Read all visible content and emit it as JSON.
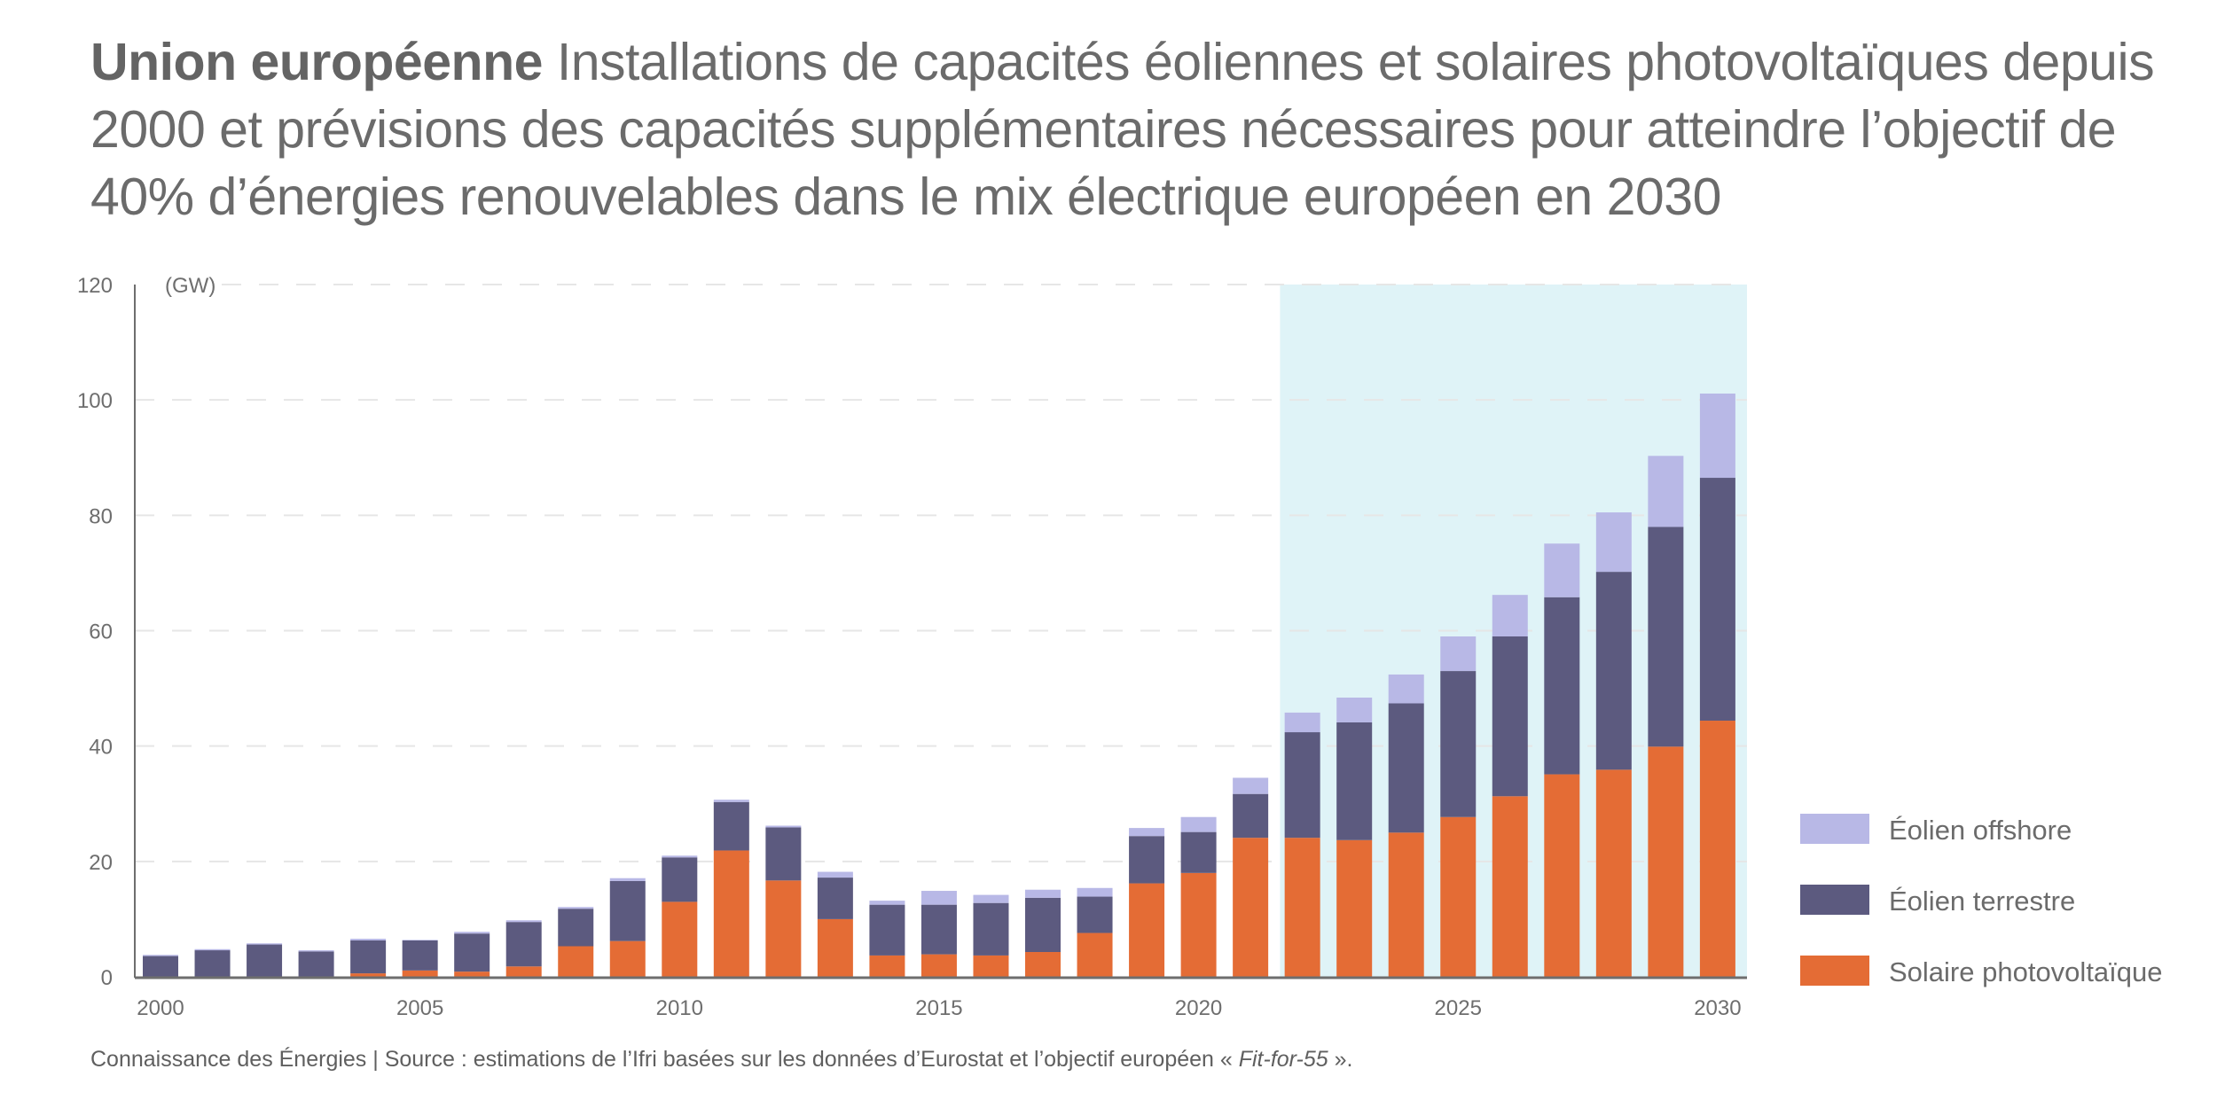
{
  "title": {
    "bold": "Union européenne",
    "rest": "Installations de capacités éoliennes et solaires photovoltaïques depuis 2000 et prévisions des capacités supplémentaires nécessaires pour atteindre l’objectif de 40% d’énergies renouvelables dans le mix électrique européen en 2030"
  },
  "footer": {
    "text": "Connaissance des Énergies | Source : estimations de l’Ifri basées sur les données d’Eurostat et l’objectif européen « ",
    "italic": "Fit-for-55",
    "end": " »."
  },
  "colors": {
    "solar": "#E46C35",
    "onshore": "#5C5A7F",
    "offshore": "#B8B8E6",
    "forecast_band": "#DFF3F7",
    "axis": "#6e6e6e",
    "grid": "#e6e6e6"
  },
  "chart_data": {
    "type": "bar",
    "stacked": true,
    "title": "Union européenne Installations de capacités éoliennes et solaires photovoltaïques depuis 2000 et prévisions des capacités supplémentaires nécessaires pour atteindre l’objectif de 40% d’énergies renouvelables dans le mix électrique européen en 2030",
    "xlabel": "",
    "ylabel": "(GW)",
    "ylim": [
      0,
      120
    ],
    "yticks": [
      0,
      20,
      40,
      60,
      80,
      100,
      120
    ],
    "xtick_labels": [
      "2000",
      "2005",
      "2010",
      "2015",
      "2020",
      "2025",
      "2030"
    ],
    "grid": "horizontal dashed",
    "legend_position": "right",
    "forecast_range": [
      2022,
      2030
    ],
    "categories": [
      2000,
      2001,
      2002,
      2003,
      2004,
      2005,
      2006,
      2007,
      2008,
      2009,
      2010,
      2011,
      2012,
      2013,
      2014,
      2015,
      2016,
      2017,
      2018,
      2019,
      2020,
      2021,
      2022,
      2023,
      2024,
      2025,
      2026,
      2027,
      2028,
      2029,
      2030
    ],
    "series": [
      {
        "name": "Solaire photovoltaïque",
        "color_key": "solar",
        "values": [
          0,
          0,
          0,
          0,
          0.6,
          1.1,
          0.9,
          1.8,
          5.3,
          6.2,
          13.0,
          21.9,
          16.7,
          10.0,
          3.7,
          3.9,
          3.7,
          4.3,
          7.6,
          16.2,
          18.0,
          24.1,
          24.1,
          23.7,
          25.0,
          27.7,
          31.3,
          35.1,
          35.9,
          39.9,
          44.4
        ]
      },
      {
        "name": "Éolien terrestre",
        "color_key": "onshore",
        "values": [
          3.6,
          4.6,
          5.6,
          4.4,
          5.7,
          5.2,
          6.6,
          7.7,
          6.5,
          10.4,
          7.7,
          8.4,
          9.2,
          7.2,
          8.8,
          8.6,
          9.1,
          9.4,
          6.3,
          8.2,
          7.1,
          7.6,
          18.3,
          20.4,
          22.4,
          25.3,
          27.7,
          30.7,
          34.3,
          38.1,
          42.1
        ]
      },
      {
        "name": "Éolien offshore",
        "color_key": "offshore",
        "values": [
          0.2,
          0.2,
          0.2,
          0.2,
          0.3,
          0.1,
          0.3,
          0.3,
          0.3,
          0.5,
          0.3,
          0.4,
          0.3,
          1.0,
          0.7,
          2.4,
          1.4,
          1.4,
          1.5,
          1.4,
          2.6,
          2.8,
          3.4,
          4.3,
          5.0,
          6.0,
          7.2,
          9.3,
          10.3,
          12.3,
          14.6
        ]
      }
    ],
    "legend": [
      "Éolien offshore",
      "Éolien terrestre",
      "Solaire photovoltaïque"
    ]
  }
}
